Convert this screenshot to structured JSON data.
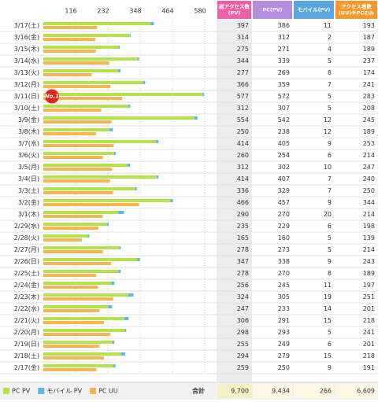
{
  "chart_data": {
    "type": "bar",
    "categories": [
      "3/17(土)",
      "3/16(金)",
      "3/15(木)",
      "3/14(水)",
      "3/13(火)",
      "3/12(月)",
      "3/11(日)",
      "3/10(土)",
      "3/9(金)",
      "3/8(木)",
      "3/7(水)",
      "3/6(火)",
      "3/5(月)",
      "3/4(日)",
      "3/3(土)",
      "3/2(金)",
      "3/1(木)",
      "2/29(水)",
      "2/28(火)",
      "2/27(月)",
      "2/26(日)",
      "2/25(土)",
      "2/24(金)",
      "2/23(木)",
      "2/22(水)",
      "2/21(火)",
      "2/20(月)",
      "2/19(日)",
      "2/18(土)",
      "2/17(金)"
    ],
    "series": [
      {
        "name": "PC PV",
        "color": "#b5e24a",
        "values": [
          386,
          312,
          271,
          339,
          269,
          359,
          572,
          307,
          542,
          238,
          405,
          254,
          302,
          407,
          329,
          457,
          270,
          229,
          160,
          273,
          338,
          270,
          245,
          305,
          233,
          291,
          293,
          249,
          279,
          250
        ]
      },
      {
        "name": "モバイル PV",
        "color": "#5bb8e8",
        "values": [
          11,
          2,
          4,
          5,
          8,
          7,
          5,
          5,
          12,
          12,
          9,
          6,
          10,
          7,
          7,
          9,
          20,
          6,
          5,
          5,
          9,
          8,
          11,
          19,
          14,
          15,
          5,
          6,
          15,
          9
        ]
      },
      {
        "name": "PC UU",
        "color": "#f9b452",
        "values": [
          193,
          187,
          189,
          237,
          174,
          241,
          283,
          208,
          245,
          189,
          253,
          214,
          247,
          240,
          250,
          344,
          214,
          198,
          139,
          214,
          243,
          189,
          197,
          251,
          201,
          218,
          241,
          201,
          218,
          191
        ]
      }
    ],
    "xlim": [
      0,
      580
    ],
    "xticks": [
      116,
      232,
      348,
      464,
      580
    ],
    "grid": true
  },
  "table": {
    "headers": [
      "総アクセス数 (PV)",
      "PC(PV)",
      "モバイル(PV)",
      "アクセス者数 (UU)※PCのみ"
    ],
    "total_pv": [
      397,
      314,
      275,
      344,
      277,
      366,
      577,
      312,
      554,
      250,
      414,
      260,
      312,
      414,
      336,
      466,
      290,
      235,
      165,
      278,
      347,
      278,
      256,
      324,
      247,
      306,
      298,
      255,
      294,
      259
    ],
    "total_label": "合計",
    "totals": [
      "9,700",
      "9,434",
      "266",
      "6,609"
    ]
  },
  "badge": "No.1"
}
